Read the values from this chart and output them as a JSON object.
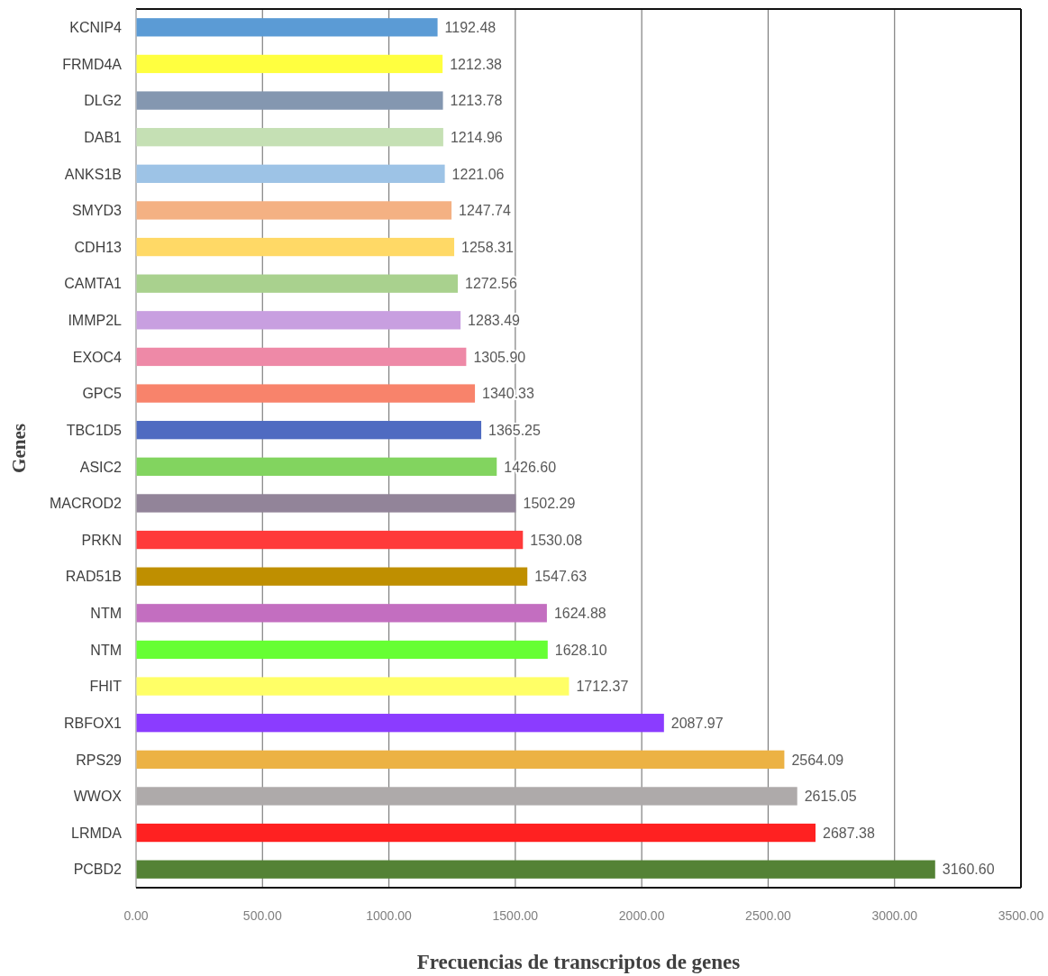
{
  "chart_data": {
    "type": "bar",
    "orientation": "horizontal",
    "xlabel": "Frecuencias de transcriptos de genes",
    "ylabel": "Genes",
    "categories": [
      "KCNIP4",
      "FRMD4A",
      "DLG2",
      "DAB1",
      "ANKS1B",
      "SMYD3",
      "CDH13",
      "CAMTA1",
      "IMMP2L",
      "EXOC4",
      "GPC5",
      "TBC1D5",
      "ASIC2",
      "MACROD2",
      "PRKN",
      "RAD51B",
      "NTM",
      "NTM",
      "FHIT",
      "RBFOX1",
      "RPS29",
      "WWOX",
      "LRMDA",
      "PCBD2"
    ],
    "values": [
      1192.48,
      1212.38,
      1213.78,
      1214.96,
      1221.06,
      1247.74,
      1258.31,
      1272.56,
      1283.49,
      1305.9,
      1340.33,
      1365.25,
      1426.6,
      1502.29,
      1530.08,
      1547.63,
      1624.88,
      1628.1,
      1712.37,
      2087.97,
      2564.09,
      2615.05,
      2687.38,
      3160.6
    ],
    "value_labels": [
      "1192.48",
      "1212.38",
      "1213.78",
      "1214.96",
      "1221.06",
      "1247.74",
      "1258.31",
      "1272.56",
      "1283.49",
      "1305.90",
      "1340.33",
      "1365.25",
      "1426.60",
      "1502.29",
      "1530.08",
      "1547.63",
      "1624.88",
      "1628.10",
      "1712.37",
      "2087.97",
      "2564.09",
      "2615.05",
      "2687.38",
      "3160.60"
    ],
    "colors": [
      "#5b9bd5",
      "#ffff3f",
      "#8497b0",
      "#c5e0b4",
      "#9dc3e6",
      "#f4b183",
      "#ffd966",
      "#a9d18e",
      "#c89fe0",
      "#ee89a7",
      "#f8836b",
      "#4f6bc1",
      "#82d45f",
      "#928499",
      "#ff3a3a",
      "#bf8f00",
      "#c36ec0",
      "#66ff33",
      "#ffff66",
      "#8b3cff",
      "#ecb244",
      "#aeaaaa",
      "#ff2121",
      "#548235"
    ],
    "xlim": [
      0,
      3500
    ],
    "xticks": [
      {
        "value": 0,
        "label": "0.00"
      },
      {
        "value": 500,
        "label": "500.00"
      },
      {
        "value": 1000,
        "label": "1000.00"
      },
      {
        "value": 1500,
        "label": "1500.00"
      },
      {
        "value": 2000,
        "label": "2000.00"
      },
      {
        "value": 2500,
        "label": "2500.00"
      },
      {
        "value": 3000,
        "label": "3000.00"
      },
      {
        "value": 3500,
        "label": "3500.00"
      }
    ],
    "grid": "x"
  }
}
